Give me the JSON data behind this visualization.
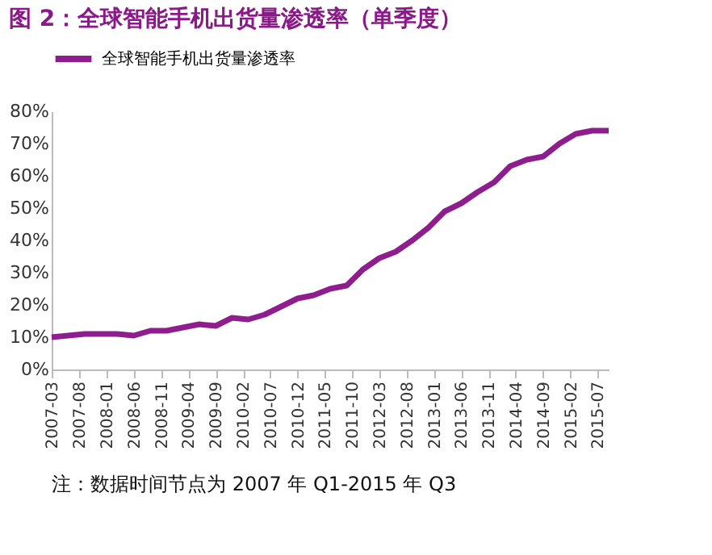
{
  "chart_data": {
    "type": "line",
    "title": "图 2：全球智能手机出货量渗透率（单季度）",
    "x": [
      "2007-03",
      "2007-06",
      "2007-09",
      "2007-12",
      "2008-03",
      "2008-06",
      "2008-09",
      "2008-12",
      "2009-03",
      "2009-06",
      "2009-09",
      "2009-12",
      "2010-03",
      "2010-06",
      "2010-09",
      "2010-12",
      "2011-03",
      "2011-06",
      "2011-09",
      "2011-12",
      "2012-03",
      "2012-06",
      "2012-09",
      "2012-12",
      "2013-03",
      "2013-06",
      "2013-09",
      "2013-12",
      "2014-03",
      "2014-06",
      "2014-09",
      "2014-12",
      "2015-03",
      "2015-06",
      "2015-09"
    ],
    "series": [
      {
        "name": "全球智能手机出货量渗透率",
        "color": "#8e1e8e",
        "values": [
          10,
          10.5,
          11,
          11,
          11,
          10.5,
          12,
          12,
          13,
          14,
          13.5,
          16,
          15.5,
          17,
          19.5,
          22,
          23,
          25,
          26,
          31,
          34.5,
          36.5,
          40,
          44,
          49,
          51.5,
          55,
          58,
          63,
          65,
          66,
          70,
          73,
          74,
          74
        ]
      }
    ],
    "xlim": [
      "2007-03",
      "2015-09"
    ],
    "xticks": [
      "2007-03",
      "2007-08",
      "2008-01",
      "2008-06",
      "2008-11",
      "2009-04",
      "2009-09",
      "2010-02",
      "2010-07",
      "2010-12",
      "2011-05",
      "2011-10",
      "2012-03",
      "2012-08",
      "2013-01",
      "2013-06",
      "2013-11",
      "2014-04",
      "2014-09",
      "2015-02",
      "2015-07"
    ],
    "ylim": [
      0,
      80
    ],
    "yticks": [
      {
        "value": 0,
        "label": "0%"
      },
      {
        "value": 10,
        "label": "10%"
      },
      {
        "value": 20,
        "label": "20%"
      },
      {
        "value": 30,
        "label": "30%"
      },
      {
        "value": 40,
        "label": "40%"
      },
      {
        "value": 50,
        "label": "50%"
      },
      {
        "value": 60,
        "label": "60%"
      },
      {
        "value": 70,
        "label": "70%"
      },
      {
        "value": 80,
        "label": "80%"
      }
    ],
    "grid": false,
    "legend": "top",
    "marker": "none",
    "line_style": "solid",
    "annotations": [
      "注：数据时间节点为 2007 年 Q1-2015 年 Q3"
    ]
  }
}
